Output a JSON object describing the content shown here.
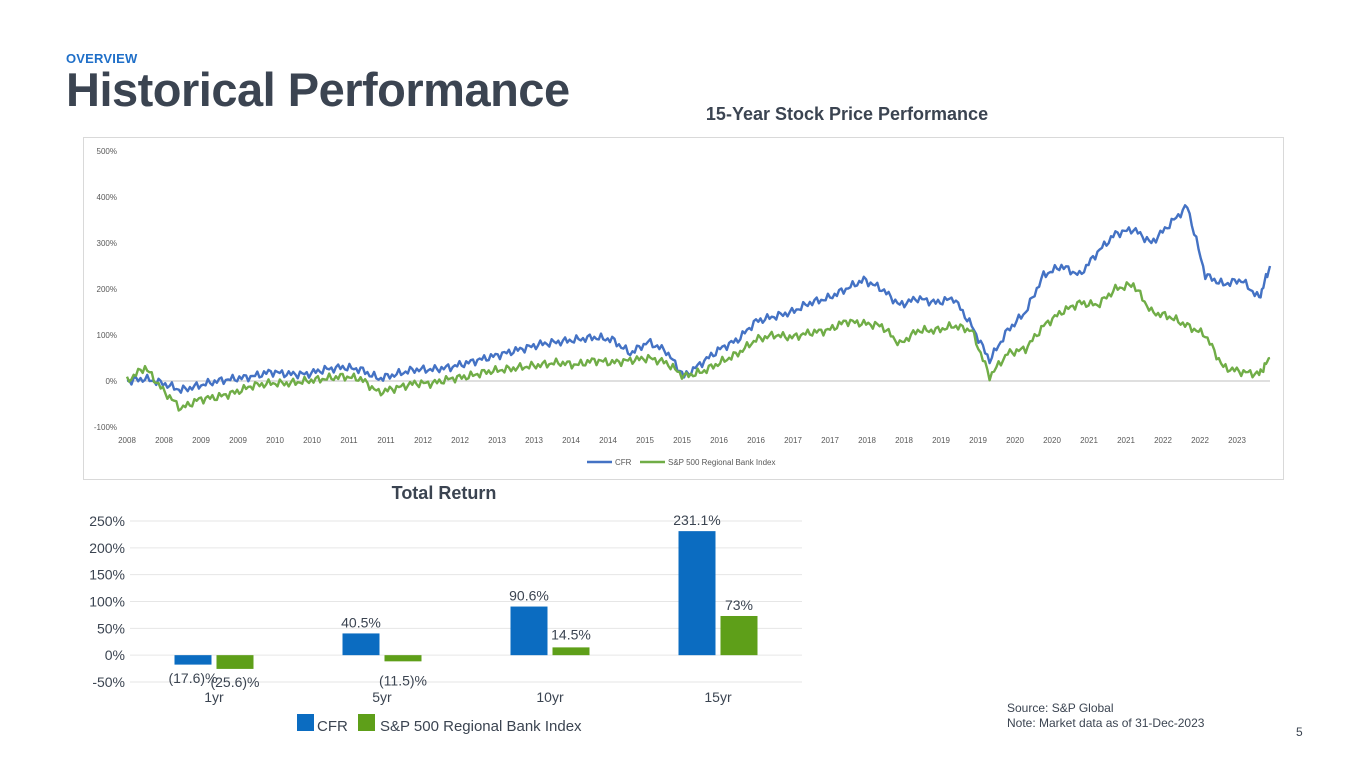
{
  "header": {
    "eyebrow": "OVERVIEW",
    "title": "Historical Performance"
  },
  "colors": {
    "cfr": "#4472c4",
    "index": "#70ad47",
    "cfr_bar": "#0b6cc1",
    "index_bar": "#5e9f19"
  },
  "chart_data": [
    {
      "type": "line",
      "title": "15-Year Stock Price Performance",
      "xlabel": "",
      "ylabel": "",
      "ylim": [
        -100,
        500
      ],
      "y_ticks": [
        "-100%",
        "0%",
        "100%",
        "200%",
        "300%",
        "400%",
        "500%"
      ],
      "x_tick_labels": [
        "2008",
        "2008",
        "2009",
        "2009",
        "2010",
        "2010",
        "2011",
        "2011",
        "2012",
        "2012",
        "2013",
        "2013",
        "2014",
        "2014",
        "2015",
        "2015",
        "2016",
        "2016",
        "2017",
        "2017",
        "2018",
        "2018",
        "2019",
        "2019",
        "2020",
        "2020",
        "2021",
        "2021",
        "2022",
        "2022",
        "2023"
      ],
      "x": [
        2008.0,
        2008.25,
        2008.5,
        2008.75,
        2009.0,
        2009.25,
        2009.5,
        2009.75,
        2010.0,
        2010.25,
        2010.5,
        2010.75,
        2011.0,
        2011.25,
        2011.5,
        2011.75,
        2012.0,
        2012.25,
        2012.5,
        2012.75,
        2013.0,
        2013.25,
        2013.5,
        2013.75,
        2014.0,
        2014.25,
        2014.5,
        2014.75,
        2015.0,
        2015.25,
        2015.5,
        2015.75,
        2016.0,
        2016.25,
        2016.5,
        2016.75,
        2017.0,
        2017.25,
        2017.5,
        2017.75,
        2018.0,
        2018.25,
        2018.5,
        2018.75,
        2019.0,
        2019.25,
        2019.5,
        2019.75,
        2020.0,
        2020.25,
        2020.5,
        2020.75,
        2021.0,
        2021.25,
        2021.5,
        2021.75,
        2022.0,
        2022.25,
        2022.5,
        2022.75,
        2023.0,
        2023.25,
        2023.5,
        2023.75,
        2023.9
      ],
      "series": [
        {
          "name": "CFR",
          "values": [
            0,
            5,
            -5,
            -20,
            -10,
            0,
            5,
            10,
            20,
            15,
            15,
            25,
            30,
            25,
            5,
            15,
            25,
            25,
            30,
            40,
            50,
            60,
            70,
            80,
            85,
            90,
            95,
            90,
            60,
            85,
            65,
            10,
            40,
            70,
            90,
            130,
            140,
            150,
            170,
            180,
            200,
            220,
            200,
            165,
            180,
            170,
            180,
            120,
            45,
            110,
            150,
            230,
            250,
            230,
            280,
            320,
            330,
            300,
            340,
            380,
            230,
            210,
            220,
            180,
            250
          ]
        },
        {
          "name": "S&P 500 Regional Bank Index",
          "values": [
            0,
            30,
            -20,
            -60,
            -40,
            -35,
            -25,
            -10,
            -5,
            -5,
            0,
            5,
            10,
            5,
            -25,
            -15,
            -5,
            -5,
            5,
            10,
            20,
            25,
            30,
            35,
            40,
            35,
            45,
            40,
            45,
            50,
            40,
            10,
            20,
            40,
            60,
            90,
            100,
            95,
            105,
            110,
            130,
            125,
            120,
            80,
            110,
            110,
            120,
            110,
            10,
            60,
            70,
            120,
            150,
            170,
            165,
            200,
            210,
            150,
            140,
            120,
            100,
            30,
            20,
            15,
            50
          ]
        }
      ],
      "legend": "bottom"
    },
    {
      "type": "bar",
      "title": "Total Return",
      "categories": [
        "1yr",
        "5yr",
        "10yr",
        "15yr"
      ],
      "ylim": [
        -50,
        250
      ],
      "y_ticks": [
        "-50%",
        "0%",
        "50%",
        "100%",
        "150%",
        "200%",
        "250%"
      ],
      "series": [
        {
          "name": "CFR",
          "values": [
            -17.6,
            40.5,
            90.6,
            231.1
          ],
          "labels": [
            "(17.6)%",
            "40.5%",
            "90.6%",
            "231.1%"
          ]
        },
        {
          "name": "S&P 500 Regional Bank Index",
          "values": [
            -25.6,
            -11.5,
            14.5,
            73
          ],
          "labels": [
            "(25.6)%",
            "(11.5)%",
            "14.5%",
            "73%"
          ]
        }
      ],
      "legend": "bottom"
    }
  ],
  "footer": {
    "source": "Source: S&P Global",
    "note": "Note: Market data as of 31-Dec-2023",
    "page": "5"
  }
}
